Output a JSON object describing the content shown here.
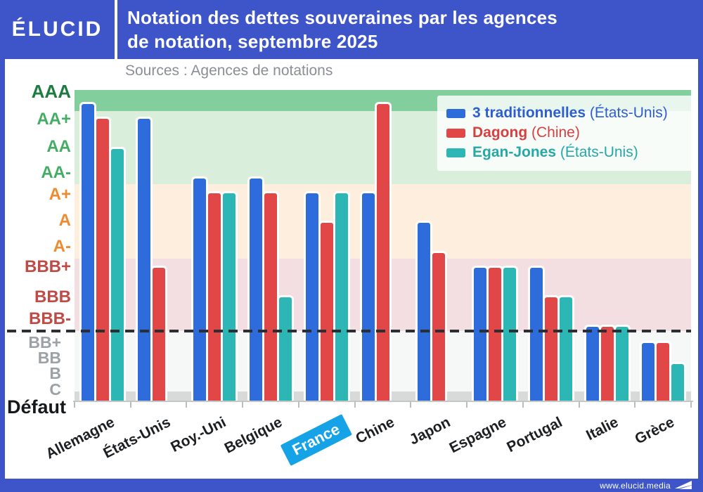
{
  "header": {
    "logo": "ÉLUCID",
    "title_line1": "Notation des dettes souveraines par les agences",
    "title_line2": "de notation, septembre 2025"
  },
  "source_note": "Sources : Agences de notations",
  "legend": {
    "entries": [
      {
        "name": "3 traditionnelles",
        "origin": "(États-Unis)",
        "color": "#2e6cdb",
        "text_color": "#2b5fd0"
      },
      {
        "name": "Dagong",
        "origin": "(Chine)",
        "color": "#e04746",
        "text_color": "#d64040"
      },
      {
        "name": "Egan-Jones",
        "origin": "(États-Unis)",
        "color": "#2cb7b4",
        "text_color": "#26a8a4"
      }
    ]
  },
  "y_axis": {
    "labels": [
      {
        "text": "AAA",
        "color": "#1e7c40"
      },
      {
        "text": "AA+",
        "color": "#43ae63"
      },
      {
        "text": "AA",
        "color": "#43ae63"
      },
      {
        "text": "AA-",
        "color": "#43ae63"
      },
      {
        "text": "A+",
        "color": "#f08a2e"
      },
      {
        "text": "A",
        "color": "#f08a2e"
      },
      {
        "text": "A-",
        "color": "#f08a2e"
      },
      {
        "text": "BBB+",
        "color": "#bf4b47"
      },
      {
        "text": "BBB",
        "color": "#bf4b47"
      },
      {
        "text": "BBB-",
        "color": "#bf4b47"
      },
      {
        "text": "BB+",
        "color": "#9ba1a5"
      },
      {
        "text": "BB",
        "color": "#9ba1a5"
      },
      {
        "text": "B",
        "color": "#9ba1a5"
      },
      {
        "text": "C",
        "color": "#9ba1a5"
      },
      {
        "text": "Défaut",
        "color": "#15191c"
      }
    ]
  },
  "chart_data": {
    "type": "bar",
    "title": "Notation des dettes souveraines par les agences de notation, septembre 2025",
    "source": "Sources : Agences de notations",
    "value_kind": "credit_rating_category",
    "rating_scale_top_to_bottom": [
      "AAA",
      "AA+",
      "AA",
      "AA-",
      "A+",
      "A",
      "A-",
      "BBB+",
      "BBB",
      "BBB-",
      "BB+",
      "BB",
      "B",
      "C",
      "Défaut"
    ],
    "categories": [
      "Allemagne",
      "États-Unis",
      "Roy.-Uni",
      "Belgique",
      "France",
      "Chine",
      "Japon",
      "Espagne",
      "Portugal",
      "Italie",
      "Grèce"
    ],
    "highlight_category": "France",
    "series": [
      {
        "name": "3 traditionnelles",
        "origin": "(États-Unis)",
        "color": "#2e6cdb",
        "values": [
          "AAA",
          "AA+",
          "AA-",
          "AA-",
          "A+",
          "A+",
          "A",
          "BBB+",
          "BBB+",
          "BBB-",
          "BB+"
        ]
      },
      {
        "name": "Dagong",
        "origin": "(Chine)",
        "color": "#e04746",
        "values": [
          "AA+",
          "BBB+",
          "A+",
          "A+",
          "A",
          "AAA",
          "A-",
          "BBB+",
          "BBB",
          "BBB-",
          "BB+"
        ]
      },
      {
        "name": "Egan-Jones",
        "origin": "(États-Unis)",
        "color": "#2cb7b4",
        "values": [
          "AA",
          null,
          "A+",
          "BBB",
          "A+",
          null,
          null,
          "BBB+",
          "BBB",
          "BBB-",
          "BB"
        ]
      }
    ],
    "zones": [
      {
        "ratings": [
          "AAA"
        ],
        "color": "#83ce9d"
      },
      {
        "ratings": [
          "AA+",
          "AA",
          "AA-"
        ],
        "color": "#d9efdc"
      },
      {
        "ratings": [
          "A+",
          "A",
          "A-"
        ],
        "color": "#fdeede"
      },
      {
        "ratings": [
          "BBB+",
          "BBB",
          "BBB-"
        ],
        "color": "#f3dee1"
      },
      {
        "ratings": [
          "BB+",
          "BB",
          "B",
          "C"
        ],
        "color": "#f6f8f8"
      },
      {
        "ratings": [
          "Défaut"
        ],
        "color": "#d8dada"
      }
    ],
    "threshold_line": {
      "below_rating": "BBB-",
      "style": "dashed"
    },
    "legend_position": "top-right",
    "grid": false
  },
  "footer": {
    "url": "www.elucid.media"
  },
  "colors": {
    "header_blue": "#3d55c8",
    "france_badge_blue": "#16a2e6",
    "bar_blue": "#2e6cdb",
    "bar_red": "#e04746",
    "bar_teal": "#2cb7b4"
  }
}
